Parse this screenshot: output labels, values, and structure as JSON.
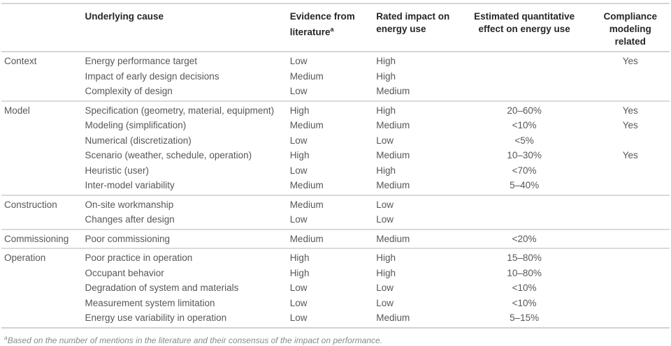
{
  "table": {
    "columns": [
      {
        "label": "",
        "align": "left"
      },
      {
        "label": "Underlying cause",
        "align": "left"
      },
      {
        "label": "Evidence from literature",
        "sup": "a",
        "align": "left"
      },
      {
        "label": "Rated impact on energy use",
        "align": "left"
      },
      {
        "label": "Estimated quantitative effect on energy use",
        "align": "center"
      },
      {
        "label": "Compliance modeling related",
        "align": "center"
      }
    ],
    "groups": [
      {
        "category": "Context",
        "rows": [
          {
            "cause": "Energy performance target",
            "evidence": "Low",
            "impact": "High",
            "effect": "",
            "compliance": "Yes"
          },
          {
            "cause": "Impact of early design decisions",
            "evidence": "Medium",
            "impact": "High",
            "effect": "",
            "compliance": ""
          },
          {
            "cause": "Complexity of design",
            "evidence": "Low",
            "impact": "Medium",
            "effect": "",
            "compliance": ""
          }
        ]
      },
      {
        "category": "Model",
        "rows": [
          {
            "cause": "Specification (geometry, material, equipment)",
            "evidence": "High",
            "impact": "High",
            "effect": "20–60%",
            "compliance": "Yes"
          },
          {
            "cause": "Modeling (simplification)",
            "evidence": "Medium",
            "impact": "Medium",
            "effect": "<10%",
            "compliance": "Yes"
          },
          {
            "cause": "Numerical (discretization)",
            "evidence": "Low",
            "impact": "Low",
            "effect": "<5%",
            "compliance": ""
          },
          {
            "cause": "Scenario (weather, schedule, operation)",
            "evidence": "High",
            "impact": "Medium",
            "effect": "10–30%",
            "compliance": "Yes"
          },
          {
            "cause": "Heuristic (user)",
            "evidence": "Low",
            "impact": "High",
            "effect": "<70%",
            "compliance": ""
          },
          {
            "cause": "Inter-model variability",
            "evidence": "Medium",
            "impact": "Medium",
            "effect": "5–40%",
            "compliance": ""
          }
        ]
      },
      {
        "category": "Construction",
        "rows": [
          {
            "cause": "On-site workmanship",
            "evidence": "Medium",
            "impact": "Low",
            "effect": "",
            "compliance": ""
          },
          {
            "cause": "Changes after design",
            "evidence": "Low",
            "impact": "Low",
            "effect": "",
            "compliance": ""
          }
        ]
      },
      {
        "category": "Commissioning",
        "rows": [
          {
            "cause": "Poor commissioning",
            "evidence": "Medium",
            "impact": "Medium",
            "effect": "<20%",
            "compliance": ""
          }
        ]
      },
      {
        "category": "Operation",
        "rows": [
          {
            "cause": "Poor practice in operation",
            "evidence": "High",
            "impact": "High",
            "effect": "15–80%",
            "compliance": ""
          },
          {
            "cause": "Occupant behavior",
            "evidence": "High",
            "impact": "High",
            "effect": "10–80%",
            "compliance": ""
          },
          {
            "cause": "Degradation of system and materials",
            "evidence": "Low",
            "impact": "Low",
            "effect": "<10%",
            "compliance": ""
          },
          {
            "cause": "Measurement system limitation",
            "evidence": "Low",
            "impact": "Low",
            "effect": "<10%",
            "compliance": ""
          },
          {
            "cause": "Energy use variability in operation",
            "evidence": "Low",
            "impact": "Medium",
            "effect": "5–15%",
            "compliance": ""
          }
        ]
      }
    ],
    "footnote_sup": "a",
    "footnote_text": "Based on the number of mentions in the literature and their consensus of the impact on performance."
  }
}
